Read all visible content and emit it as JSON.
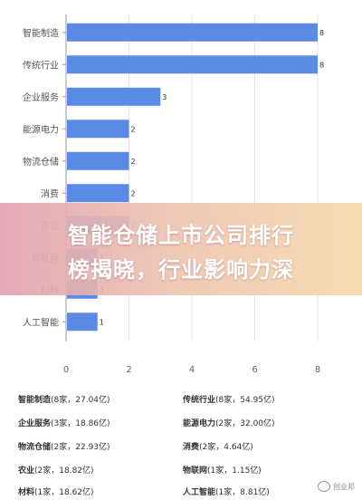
{
  "chart_data": {
    "type": "bar",
    "orientation": "horizontal",
    "categories": [
      "智能制造",
      "传统行业",
      "企业服务",
      "能源电力",
      "物流仓储",
      "消费",
      "农业",
      "物联网",
      "材料",
      "人工智能"
    ],
    "values": [
      8,
      8,
      3,
      2,
      2,
      2,
      2,
      1,
      1,
      1
    ],
    "value_labels": [
      "8",
      "8",
      "3",
      "2",
      "2",
      "2",
      "2",
      "1",
      "1",
      "1"
    ],
    "x_ticks": [
      "0",
      "2",
      "4",
      "6",
      "8"
    ],
    "xlim": [
      0,
      8
    ],
    "grid": true,
    "bar_color": "#5b8ae6"
  },
  "banner": {
    "line1": "智能仓储上市公司排行",
    "line2": "榜揭晓，行业影响力深"
  },
  "legend": [
    {
      "name": "智能制造",
      "detail": "(8家，27.04亿)"
    },
    {
      "name": "传统行业",
      "detail": "(8家，54.95亿)"
    },
    {
      "name": "企业服务",
      "detail": "(3家，18.86亿)"
    },
    {
      "name": "能源电力",
      "detail": "(2家，32.00亿)"
    },
    {
      "name": "物流仓储",
      "detail": "(2家，22.93亿)"
    },
    {
      "name": "消费",
      "detail": "(2家，4.64亿)"
    },
    {
      "name": "农业",
      "detail": "(2家，18.82亿)"
    },
    {
      "name": "物联网",
      "detail": "(1家，1.15亿)"
    },
    {
      "name": "材料",
      "detail": "(1家，18.62亿)"
    },
    {
      "name": "人工智能",
      "detail": "(1家，8.81亿)"
    }
  ],
  "watermark": {
    "text": "创业邦",
    "icon": "weibo-icon"
  }
}
